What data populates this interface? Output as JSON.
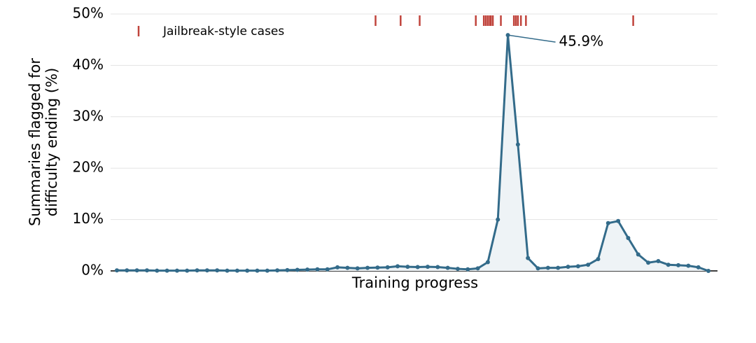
{
  "chart_data": {
    "type": "line",
    "xlabel": "Training progress",
    "ylabel": [
      "Summaries flagged for",
      "difficulty ending (%)"
    ],
    "x": [
      0,
      1,
      2,
      3,
      4,
      5,
      6,
      7,
      8,
      9,
      10,
      11,
      12,
      13,
      14,
      15,
      16,
      17,
      18,
      19,
      20,
      21,
      22,
      23,
      24,
      25,
      26,
      27,
      28,
      29,
      30,
      31,
      32,
      33,
      34,
      35,
      36,
      37,
      38,
      39,
      40,
      41,
      42,
      43,
      44,
      45,
      46,
      47,
      48,
      49,
      50,
      51,
      52,
      53,
      54,
      55,
      56,
      57,
      58,
      59
    ],
    "xlim": [
      0,
      59
    ],
    "ylim": [
      0,
      50
    ],
    "yticks": [
      {
        "value": 0,
        "label": "0%"
      },
      {
        "value": 10,
        "label": "10%"
      },
      {
        "value": 20,
        "label": "20%"
      },
      {
        "value": 30,
        "label": "30%"
      },
      {
        "value": 40,
        "label": "40%"
      },
      {
        "value": 50,
        "label": "50%"
      }
    ],
    "grid": true,
    "series": [
      {
        "color": "#336b8a",
        "fill": "#eef3f6",
        "values": [
          0.1,
          0.1,
          0.1,
          0.1,
          0.05,
          0.05,
          0.05,
          0.05,
          0.1,
          0.1,
          0.1,
          0.05,
          0.05,
          0.05,
          0.05,
          0.05,
          0.1,
          0.15,
          0.2,
          0.25,
          0.3,
          0.3,
          0.7,
          0.6,
          0.5,
          0.6,
          0.65,
          0.7,
          0.9,
          0.8,
          0.75,
          0.8,
          0.75,
          0.6,
          0.4,
          0.3,
          0.5,
          1.7,
          10.0,
          45.9,
          24.6,
          2.5,
          0.5,
          0.6,
          0.6,
          0.8,
          0.9,
          1.2,
          2.3,
          9.3,
          9.7,
          6.4,
          3.2,
          1.6,
          1.9,
          1.2,
          1.1,
          1.0,
          0.7,
          0.0
        ],
        "value_labels": [
          null,
          null,
          null,
          null,
          null,
          null,
          null,
          null,
          null,
          null,
          null,
          null,
          null,
          null,
          null,
          null,
          null,
          null,
          null,
          null,
          null,
          null,
          null,
          null,
          null,
          null,
          null,
          null,
          null,
          null,
          null,
          null,
          null,
          null,
          null,
          null,
          null,
          null,
          null,
          "45.9%",
          null,
          null,
          null,
          null,
          null,
          null,
          null,
          null,
          null,
          null,
          null,
          null,
          null,
          null,
          null,
          null,
          null,
          null,
          null,
          null
        ]
      }
    ],
    "rug": {
      "name": "Jailbreak-style cases",
      "color": "#c0443c",
      "x": [
        25.8,
        28.3,
        30.2,
        35.8,
        36.6,
        36.8,
        37.0,
        37.2,
        37.3,
        37.5,
        38.3,
        39.6,
        39.8,
        40.0,
        40.3,
        40.8,
        51.5
      ]
    }
  }
}
